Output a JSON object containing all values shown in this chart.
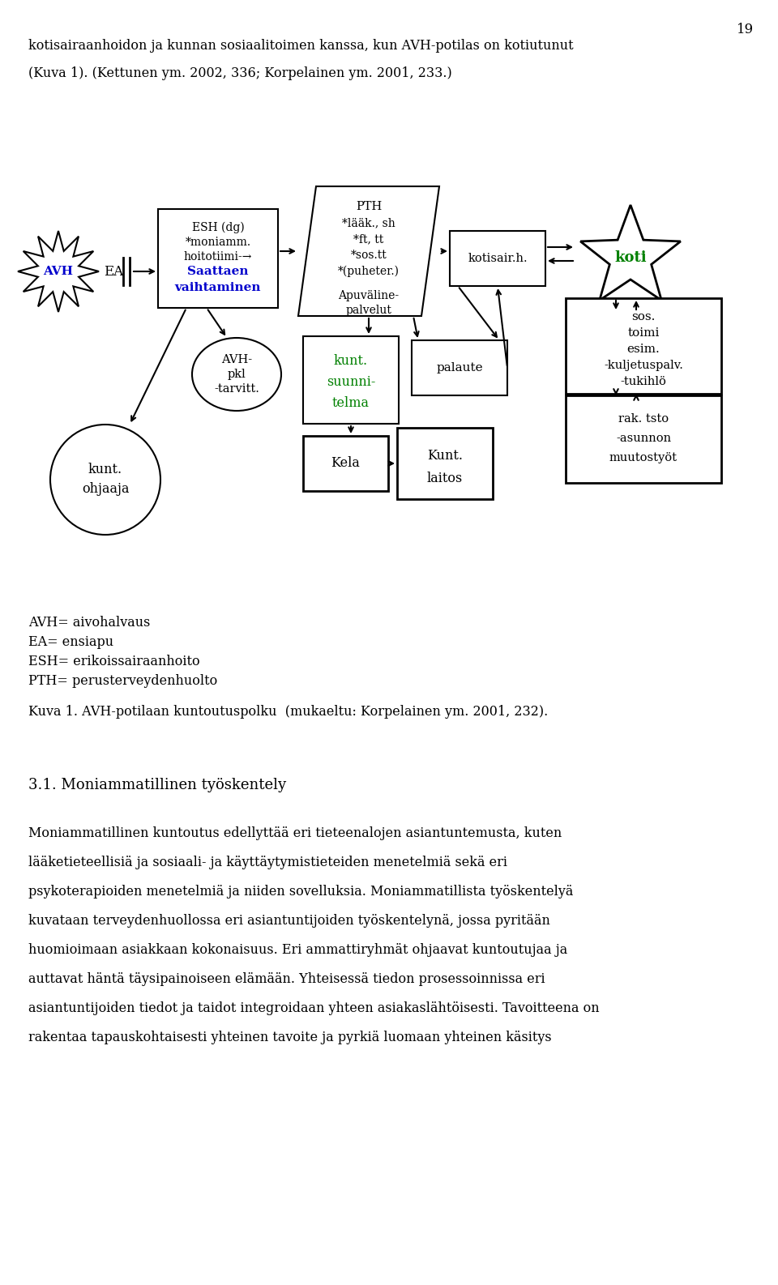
{
  "page_number": "19",
  "intro_line1": "kotisairaanhoidon ja kunnan sosiaalitoimen kanssa, kun AVH-potilas on kotiutunut",
  "intro_line2": "(Kuva 1). (Kettunen ym. 2002, 336; Korpelainen ym. 2001, 233.)",
  "legend_lines": [
    "AVH= aivohalvaus",
    "EA= ensiapu",
    "ESH= erikoissairaanhoito",
    "PTH= perusterveydenhuolto"
  ],
  "caption": "Kuva 1. AVH-potilaan kuntoutuspolku  (mukaeltu: Korpelainen ym. 2001, 232).",
  "section_title": "3.1. Moniammatillinen työskentely",
  "body_lines": [
    "Moniammatillinen kuntoutus edellyttää eri tieteenalojen asiantuntemusta, kuten",
    "lääketieteellisiä ja sosiaali- ja käyttäytymistieteiden menetelmiä sekä eri",
    "psykoterapioiden menetelmiä ja niiden sovelluksia. Moniammatillista työskentelyä",
    "kuvataan terveydenhuollossa eri asiantuntijoiden työskentelynä, jossa pyritään",
    "huomioimaan asiakkaan kokonaisuus. Eri ammattiryhmät ohjaavat kuntoutujaa ja",
    "auttavat häntä täysipainoiseen elämään. Yhteisessä tiedon prosessoinnissa eri",
    "asiantuntijoiden tiedot ja taidot integroidaan yhteen asiakaslähtöisesti. Tavoitteena on",
    "rakentaa tapauskohtaisesti yhteinen tavoite ja pyrkiä luomaan yhteinen käsitys"
  ],
  "bg_color": "#ffffff",
  "text_color": "#000000",
  "blue_color": "#0000cc",
  "green_color": "#008000"
}
